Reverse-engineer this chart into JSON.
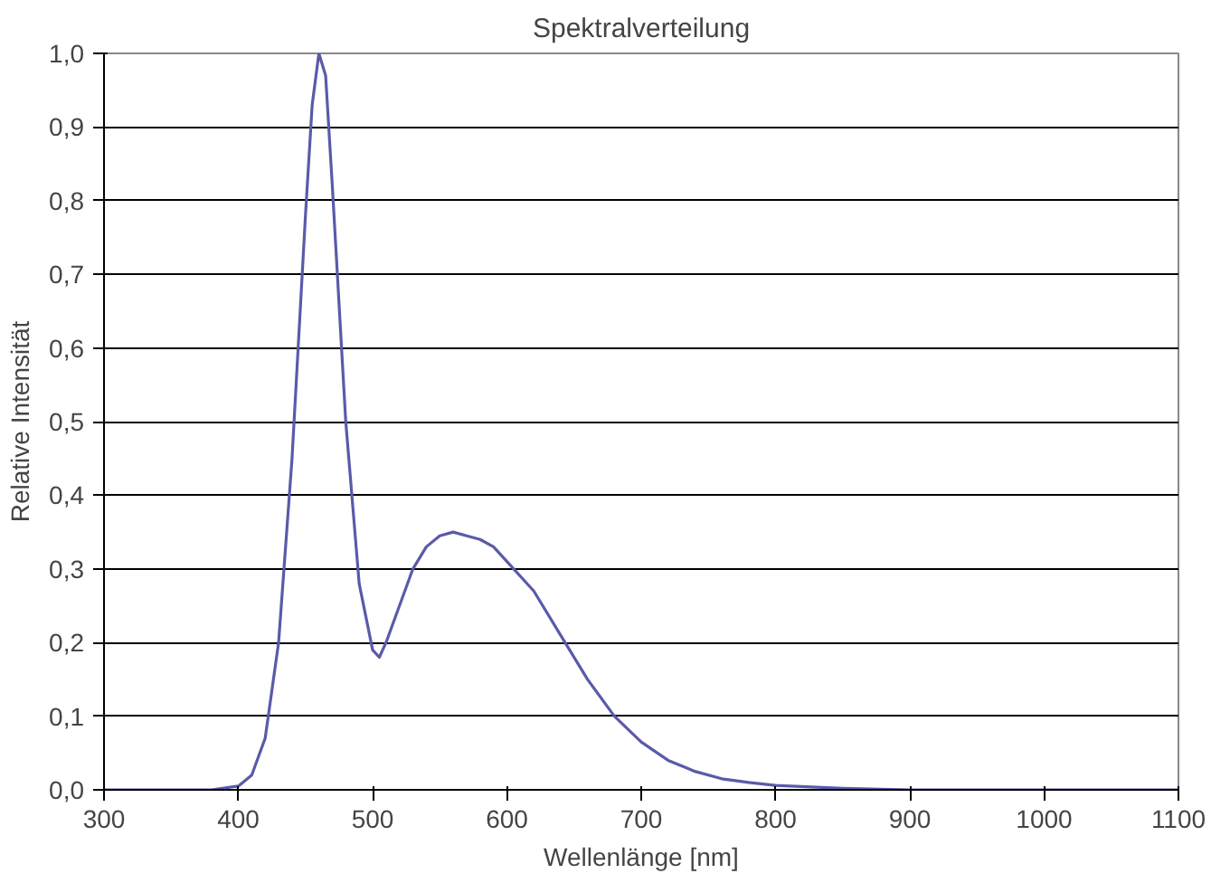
{
  "chart_data": {
    "type": "line",
    "title": "Spektralverteilung",
    "xlabel": "Wellenlänge [nm]",
    "ylabel": "Relative Intensität",
    "x": [
      300,
      380,
      400,
      410,
      420,
      430,
      440,
      450,
      455,
      460,
      465,
      470,
      480,
      490,
      500,
      505,
      510,
      520,
      530,
      540,
      550,
      560,
      570,
      580,
      590,
      600,
      620,
      640,
      660,
      680,
      700,
      720,
      740,
      760,
      780,
      800,
      850,
      900,
      1000,
      1100
    ],
    "series": [
      {
        "color": "#5a5aaa",
        "values": [
          0,
          0,
          0.005,
          0.02,
          0.07,
          0.2,
          0.45,
          0.78,
          0.93,
          1.0,
          0.97,
          0.82,
          0.5,
          0.28,
          0.19,
          0.18,
          0.2,
          0.25,
          0.3,
          0.33,
          0.345,
          0.35,
          0.345,
          0.34,
          0.33,
          0.31,
          0.27,
          0.21,
          0.15,
          0.1,
          0.065,
          0.04,
          0.025,
          0.015,
          0.01,
          0.006,
          0.002,
          0,
          0,
          0
        ]
      }
    ],
    "xlim": [
      300,
      1100
    ],
    "ylim": [
      0,
      1
    ],
    "xticks": [
      300,
      400,
      500,
      600,
      700,
      800,
      900,
      1000,
      1100
    ],
    "yticks": [
      {
        "value": 0,
        "label": "0,0"
      },
      {
        "value": 0.1,
        "label": "0,1"
      },
      {
        "value": 0.2,
        "label": "0,2"
      },
      {
        "value": 0.3,
        "label": "0,3"
      },
      {
        "value": 0.4,
        "label": "0,4"
      },
      {
        "value": 0.5,
        "label": "0,5"
      },
      {
        "value": 0.6,
        "label": "0,6"
      },
      {
        "value": 0.7,
        "label": "0,7"
      },
      {
        "value": 0.8,
        "label": "0,8"
      },
      {
        "value": 0.9,
        "label": "0,9"
      },
      {
        "value": 1,
        "label": "1,0"
      }
    ],
    "grid": "y",
    "marker": "none",
    "line_style": "solid"
  }
}
